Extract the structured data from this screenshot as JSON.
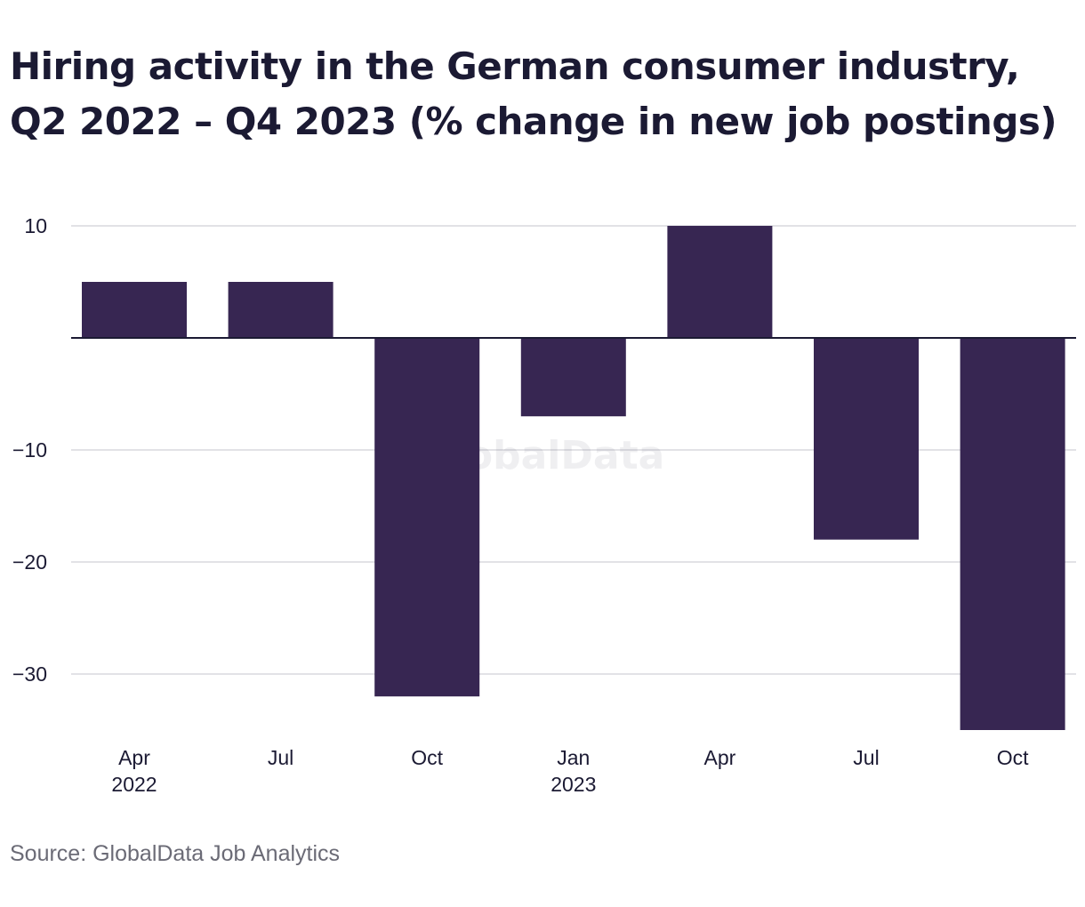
{
  "chart_data": {
    "type": "bar",
    "title": "Hiring activity in the German consumer industry, Q2 2022 – Q4 2023 (% change in new job postings)",
    "source": "Source: GlobalData Job Analytics",
    "watermark": "GlobalData",
    "categories": [
      {
        "month": "Apr",
        "year": "2022"
      },
      {
        "month": "Jul",
        "year": ""
      },
      {
        "month": "Oct",
        "year": ""
      },
      {
        "month": "Jan",
        "year": "2023"
      },
      {
        "month": "Apr",
        "year": ""
      },
      {
        "month": "Jul",
        "year": ""
      },
      {
        "month": "Oct",
        "year": ""
      }
    ],
    "values": [
      5,
      5,
      -32,
      -7,
      10,
      -18,
      -35
    ],
    "y_ticks": [
      10,
      -10,
      -20,
      -30
    ],
    "y_tick_labels": [
      "10",
      "−10",
      "−20",
      "−30"
    ],
    "ylim": [
      -35,
      10
    ],
    "bar_color": "#372652",
    "grid": true,
    "legend": "none"
  }
}
